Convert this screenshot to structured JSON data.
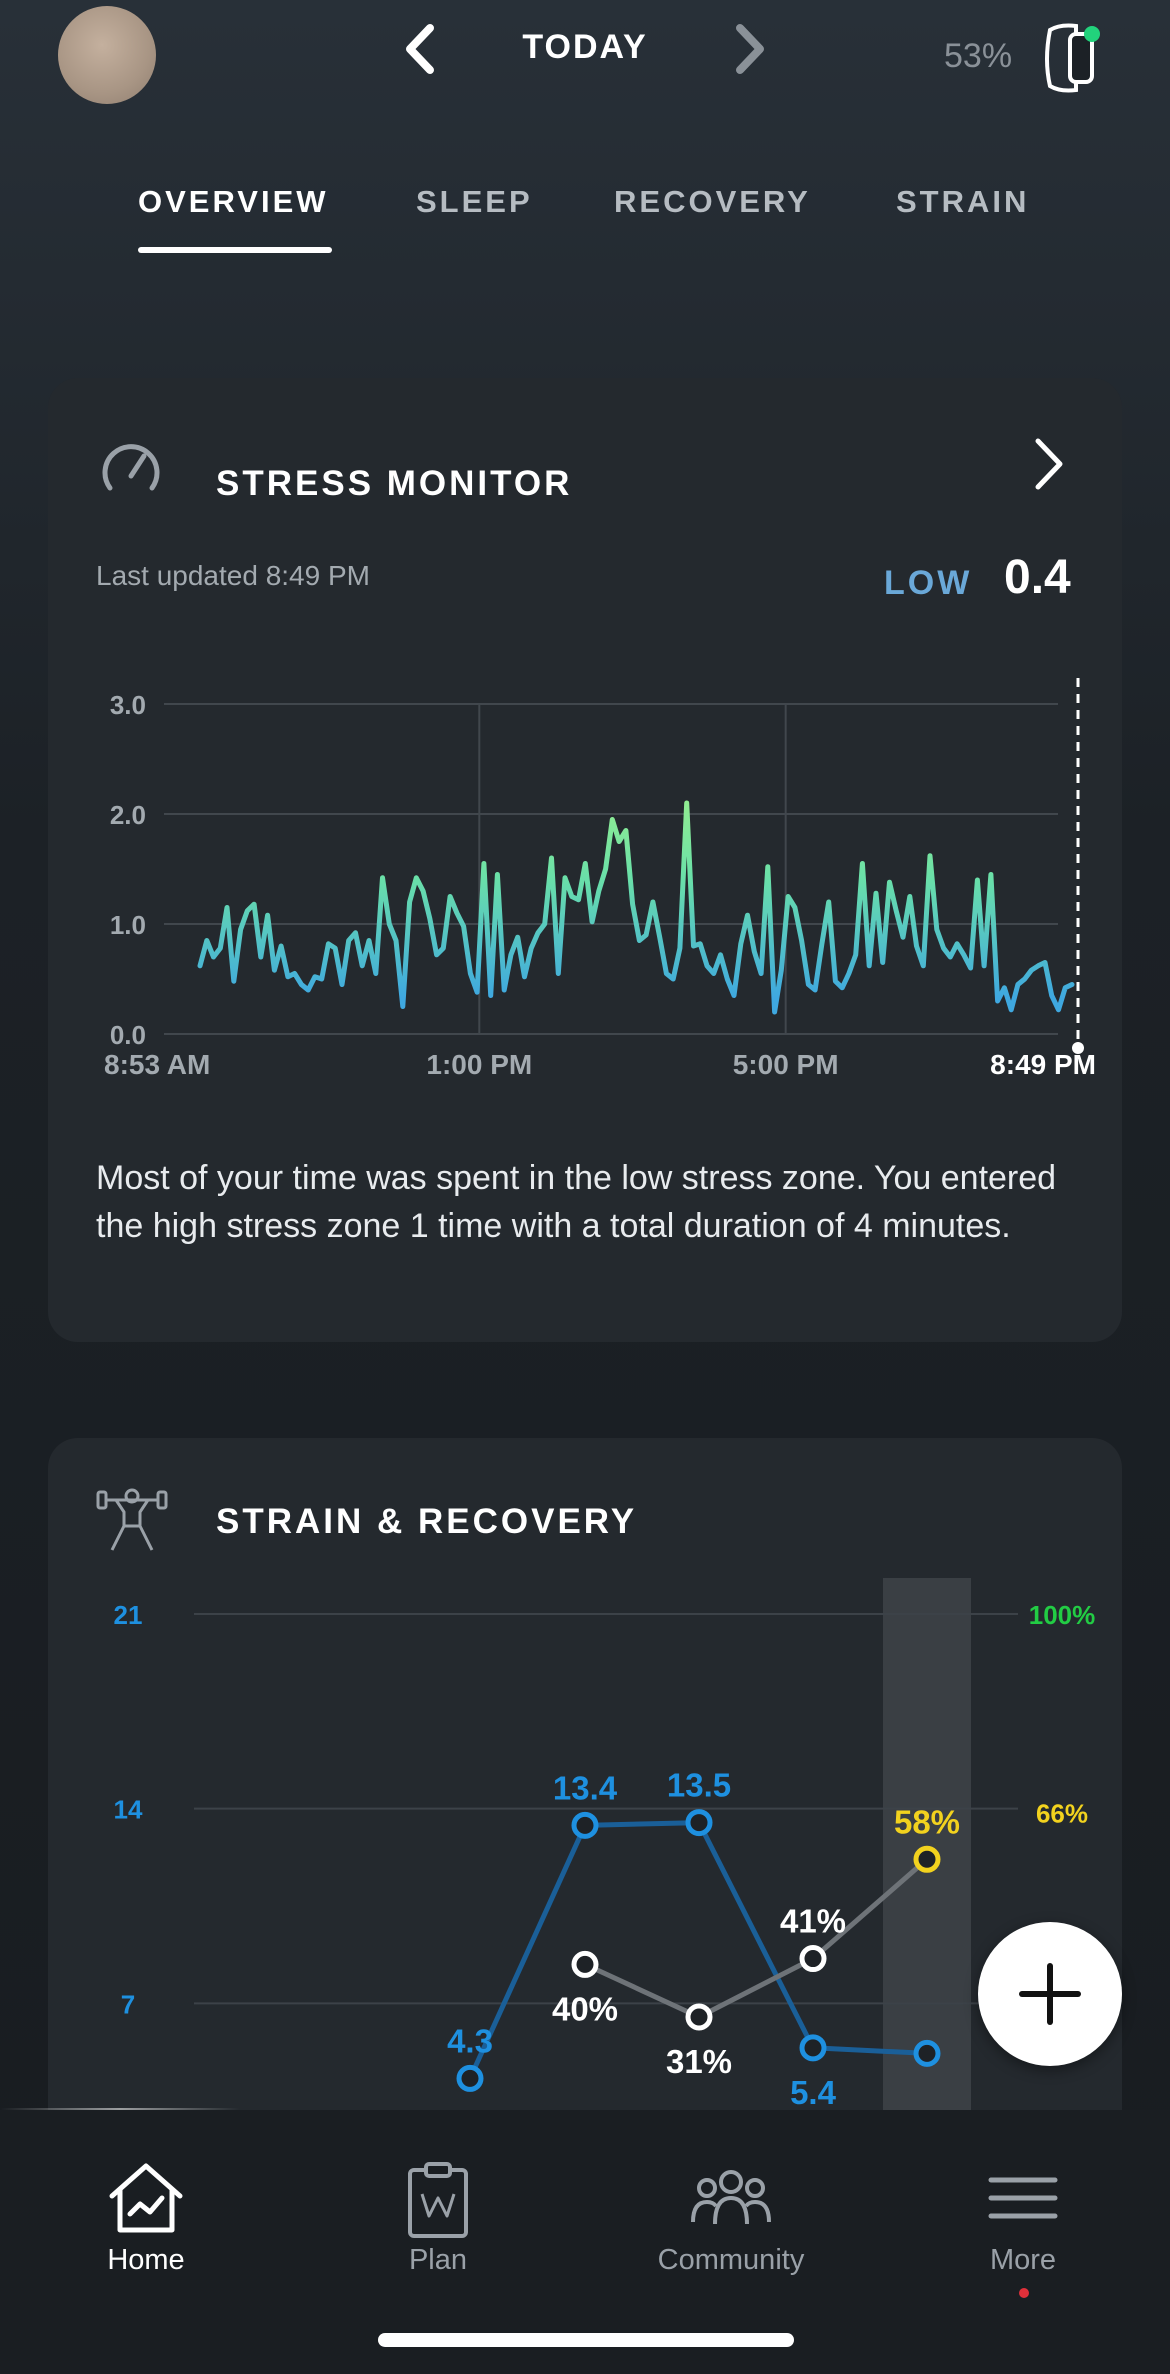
{
  "header": {
    "date_label": "TODAY",
    "battery_percent": "53%",
    "colors": {
      "battery_dot": "#22d37c"
    }
  },
  "tabs": [
    {
      "label": "OVERVIEW",
      "active": true
    },
    {
      "label": "SLEEP",
      "active": false
    },
    {
      "label": "RECOVERY",
      "active": false
    },
    {
      "label": "STRAIN",
      "active": false
    }
  ],
  "stress": {
    "title": "STRESS MONITOR",
    "last_updated": "Last updated 8:49 PM",
    "level_label": "LOW",
    "level_value": "0.4",
    "summary": "Most of your time was spent in the low stress zone. You entered the high stress zone 1 time with a total duration of 4 minutes.",
    "chart_data": {
      "type": "line",
      "y_ticks": [
        "3.0",
        "2.0",
        "1.0",
        "0.0"
      ],
      "ylim": [
        0,
        3
      ],
      "x_ticks": [
        "8:53 AM",
        "1:00 PM",
        "5:00 PM",
        "8:49 PM"
      ],
      "x_range_hours": [
        8.883,
        20.817
      ],
      "x_tick_hours": [
        8.883,
        13,
        17,
        20.817
      ],
      "colors": {
        "low": "#4ab8dc",
        "high": "#7fe6a0"
      },
      "values": [
        0.62,
        0.85,
        0.7,
        0.78,
        1.15,
        0.48,
        0.95,
        1.12,
        1.18,
        0.7,
        1.08,
        0.58,
        0.8,
        0.52,
        0.55,
        0.45,
        0.4,
        0.52,
        0.5,
        0.82,
        0.78,
        0.45,
        0.85,
        0.92,
        0.62,
        0.85,
        0.55,
        1.42,
        1.0,
        0.85,
        0.25,
        1.2,
        1.42,
        1.3,
        1.05,
        0.72,
        0.78,
        1.25,
        1.1,
        0.98,
        0.55,
        0.38,
        1.55,
        0.35,
        1.45,
        0.4,
        0.72,
        0.88,
        0.52,
        0.78,
        0.92,
        1.0,
        1.6,
        0.55,
        1.42,
        1.25,
        1.22,
        1.55,
        1.02,
        1.3,
        1.5,
        1.95,
        1.75,
        1.85,
        1.18,
        0.85,
        0.9,
        1.2,
        0.88,
        0.55,
        0.5,
        0.78,
        2.1,
        0.8,
        0.82,
        0.62,
        0.55,
        0.72,
        0.5,
        0.35,
        0.82,
        1.08,
        0.75,
        0.55,
        1.52,
        0.2,
        0.58,
        1.25,
        1.15,
        0.85,
        0.45,
        0.4,
        0.82,
        1.2,
        0.48,
        0.42,
        0.55,
        0.72,
        1.55,
        0.62,
        1.28,
        0.65,
        1.38,
        1.12,
        0.88,
        1.25,
        0.8,
        0.62,
        1.62,
        0.95,
        0.78,
        0.7,
        0.82,
        0.72,
        0.6,
        1.4,
        0.62,
        1.45,
        0.3,
        0.42,
        0.22,
        0.45,
        0.5,
        0.58,
        0.62,
        0.65,
        0.35,
        0.22,
        0.42,
        0.45
      ],
      "cursor": "8:49 PM"
    }
  },
  "strain_recovery": {
    "title": "STRAIN & RECOVERY",
    "chart_data": {
      "type": "line",
      "left_ticks": [
        "21",
        "14",
        "7"
      ],
      "right_ticks": [
        "100%",
        "66%"
      ],
      "strain_ylim": [
        0,
        21
      ],
      "recovery_ylim": [
        0,
        100
      ],
      "colors": {
        "strain": "#1e90e0",
        "recovery_high": "#22cc44",
        "recovery_mid": "#f2d21e",
        "recovery_line": "#6e7378",
        "highlight": "#3a3f44"
      },
      "series": [
        {
          "values": [
            4.3,
            13.4,
            13.5,
            5.4,
            5.2
          ],
          "labels": [
            "4.3",
            "13.4",
            "13.5",
            "5.4",
            ""
          ]
        },
        {
          "values": [
            null,
            40,
            31,
            41,
            58
          ],
          "labels": [
            "",
            "40%",
            "31%",
            "41%",
            "58%"
          ]
        }
      ]
    }
  },
  "fab": {
    "icon": "plus-icon"
  },
  "bottom_nav": {
    "items": [
      {
        "label": "Home",
        "icon": "home-chart-icon",
        "active": true
      },
      {
        "label": "Plan",
        "icon": "clipboard-icon",
        "active": false
      },
      {
        "label": "Community",
        "icon": "people-icon",
        "active": false
      },
      {
        "label": "More",
        "icon": "menu-icon",
        "active": false
      }
    ]
  }
}
